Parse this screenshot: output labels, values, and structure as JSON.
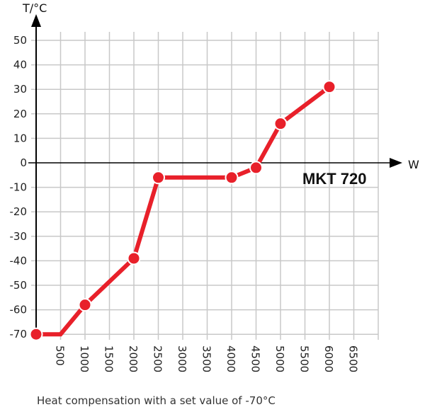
{
  "chart_data": {
    "type": "line",
    "title": "MKT 720",
    "caption": "Heat compensation with a set value of -70°C",
    "xlabel": "W",
    "ylabel": "T/°C",
    "xlim": [
      0,
      7000
    ],
    "ylim": [
      -70,
      50
    ],
    "x_ticks": [
      500,
      1000,
      1500,
      2000,
      2500,
      3000,
      3500,
      4000,
      4500,
      5000,
      5500,
      6000,
      6500
    ],
    "y_ticks": [
      50,
      40,
      30,
      20,
      10,
      0,
      -10,
      -20,
      -30,
      -40,
      -50,
      -60,
      -70
    ],
    "grid": true,
    "legend": null,
    "series": [
      {
        "name": "MKT 720",
        "color": "#e8202a",
        "line_points": [
          [
            0,
            -70
          ],
          [
            500,
            -70
          ],
          [
            1000,
            -58
          ],
          [
            2000,
            -39
          ],
          [
            2500,
            -6
          ],
          [
            4000,
            -6
          ],
          [
            4500,
            -2
          ],
          [
            5000,
            16
          ],
          [
            6000,
            31
          ]
        ],
        "markers": [
          [
            0,
            -70
          ],
          [
            1000,
            -58
          ],
          [
            2000,
            -39
          ],
          [
            2500,
            -6
          ],
          [
            4000,
            -6
          ],
          [
            4500,
            -2
          ],
          [
            5000,
            16
          ],
          [
            6000,
            31
          ]
        ]
      }
    ]
  },
  "labels": {
    "y_axis": "T/°C",
    "x_axis": "W",
    "model": "MKT 720",
    "caption": "Heat compensation with a set value of -70°C"
  }
}
